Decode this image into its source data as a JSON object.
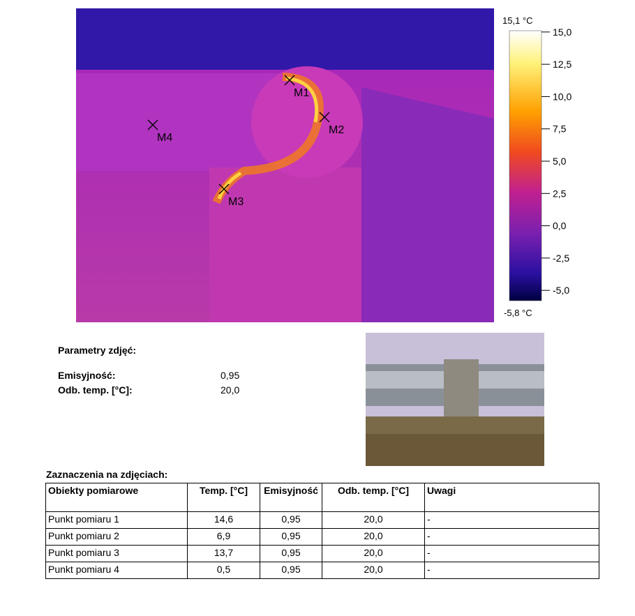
{
  "thermal_image": {
    "markers": [
      "M1",
      "M2",
      "M3",
      "M4"
    ]
  },
  "scale": {
    "max": {
      "value": 15.1,
      "label": "15,1 °C"
    },
    "min": {
      "value": -5.8,
      "label": "-5,8 °C"
    },
    "ticks": [
      {
        "value": 15,
        "label": "15,0"
      },
      {
        "value": 12.5,
        "label": "12,5"
      },
      {
        "value": 10,
        "label": "10,0"
      },
      {
        "value": 7.5,
        "label": "7,5"
      },
      {
        "value": 5,
        "label": "5,0"
      },
      {
        "value": 2.5,
        "label": "2,5"
      },
      {
        "value": 0,
        "label": "0,0"
      },
      {
        "value": -2.5,
        "label": "-2,5"
      },
      {
        "value": -5,
        "label": "-5,0"
      }
    ]
  },
  "parameters": {
    "title": "Parametry zdjęć:",
    "rows": [
      [
        "Emisyjność:",
        "0,95"
      ],
      [
        "Odb. temp. [°C]:",
        "20,0"
      ]
    ]
  },
  "table": {
    "title": "Zaznaczenia na zdjęciach:",
    "header": [
      "Obiekty pomiarowe",
      "Temp. [°C]",
      "Emisyjność",
      "Odb. temp. [°C]",
      "Uwagi"
    ],
    "rows": [
      [
        "Punkt pomiaru 1",
        "14,6",
        "0,95",
        "20,0",
        "-"
      ],
      [
        "Punkt pomiaru 2",
        "6,9",
        "0,95",
        "20,0",
        "-"
      ],
      [
        "Punkt pomiaru 3",
        "13,7",
        "0,95",
        "20,0",
        "-"
      ],
      [
        "Punkt pomiaru 4",
        "0,5",
        "0,95",
        "20,0",
        "-"
      ]
    ]
  }
}
